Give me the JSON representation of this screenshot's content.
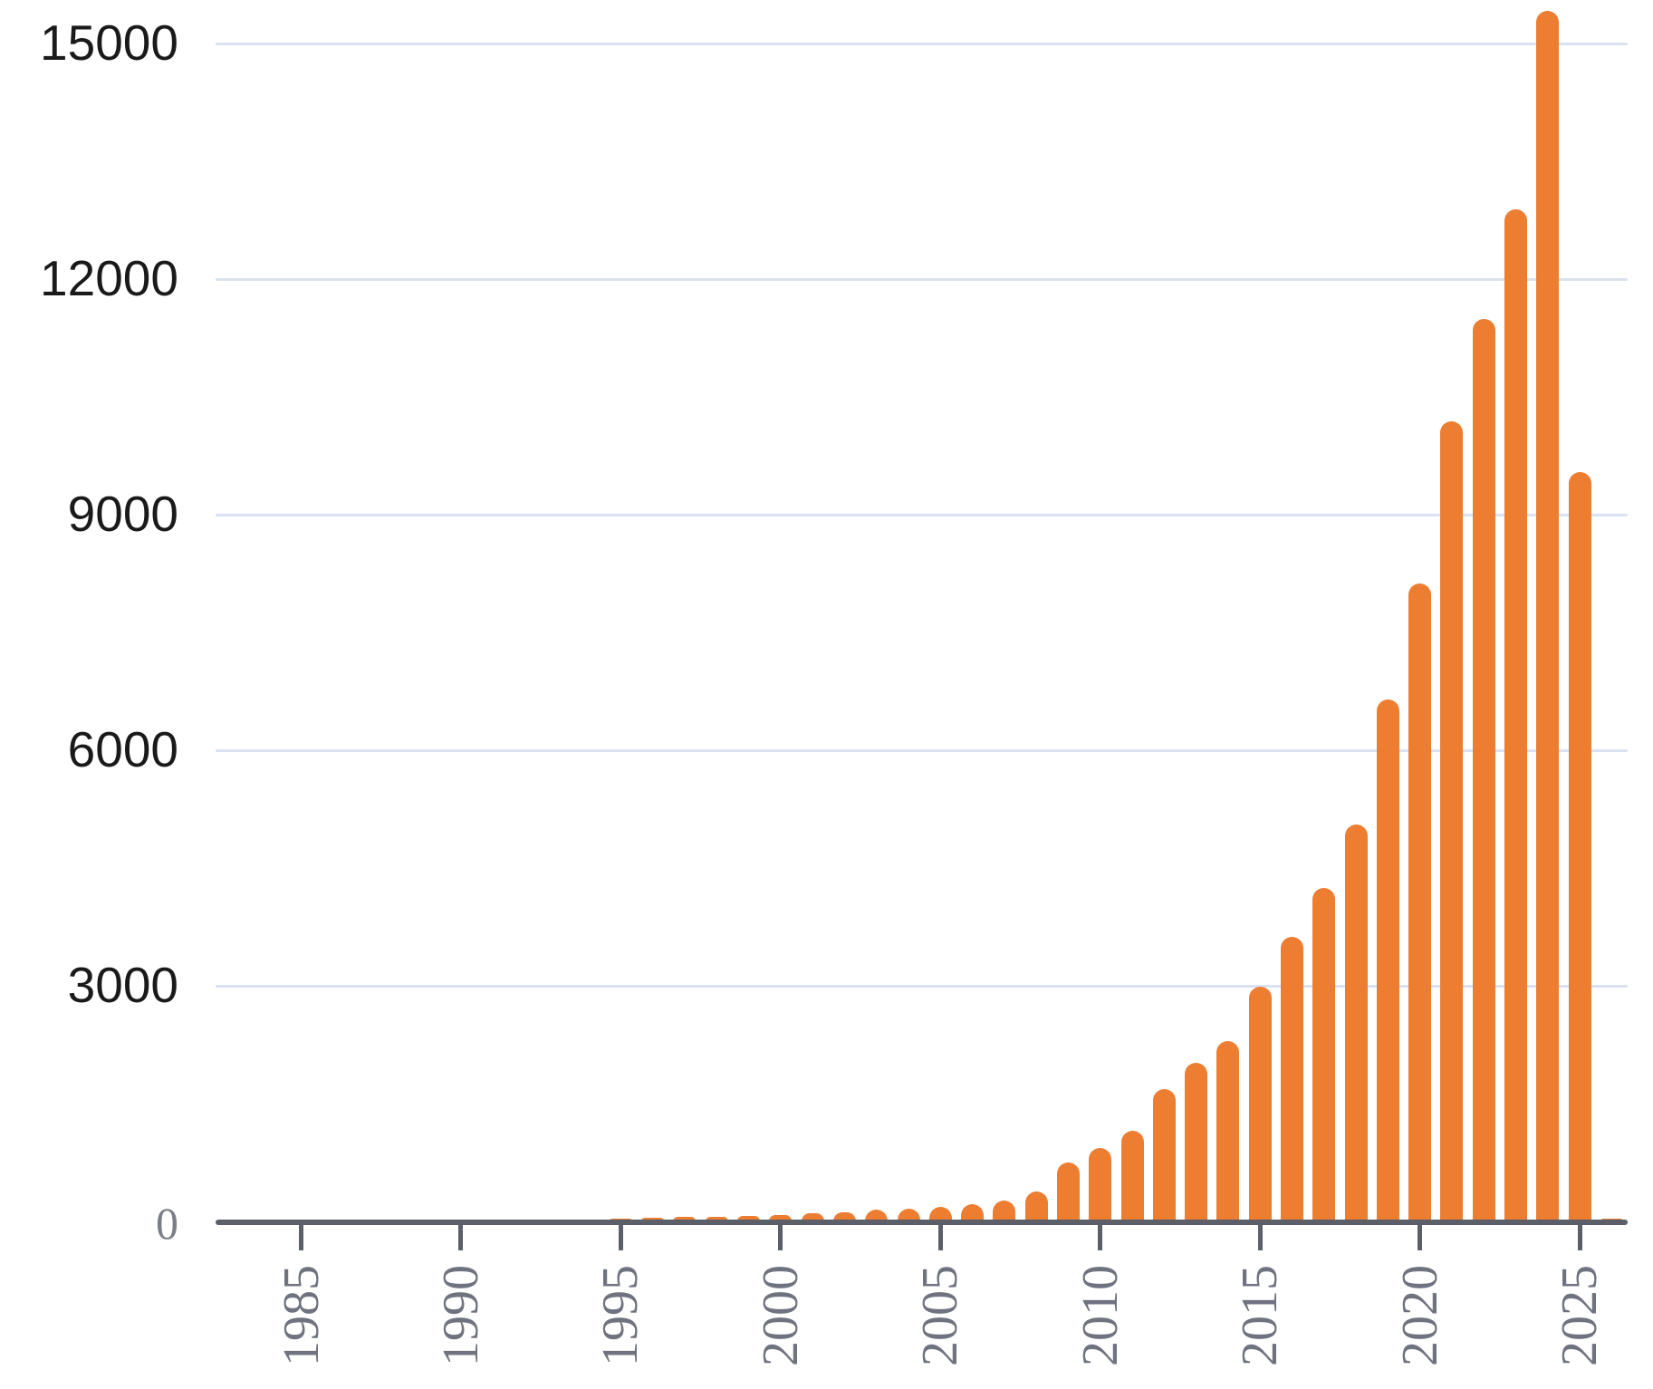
{
  "chart_data": {
    "type": "bar",
    "title": "",
    "xlabel": "",
    "ylabel": "",
    "grid": "horizontal",
    "legend": "none",
    "ylim": [
      0,
      15500
    ],
    "x_tick_step": 5,
    "years": [
      1983,
      1984,
      1985,
      1986,
      1987,
      1988,
      1989,
      1990,
      1991,
      1992,
      1993,
      1994,
      1995,
      1996,
      1997,
      1998,
      1999,
      2000,
      2001,
      2002,
      2003,
      2004,
      2005,
      2006,
      2007,
      2008,
      2009,
      2010,
      2011,
      2012,
      2013,
      2014,
      2015,
      2016,
      2017,
      2018,
      2019,
      2020,
      2021,
      2022,
      2023,
      2024,
      2025,
      2026
    ],
    "values": [
      2,
      2,
      3,
      4,
      5,
      6,
      7,
      9,
      12,
      16,
      21,
      26,
      33,
      42,
      52,
      62,
      72,
      78,
      105,
      120,
      150,
      158,
      190,
      225,
      270,
      385,
      750,
      930,
      1150,
      1690,
      2020,
      2300,
      2990,
      3620,
      4250,
      5050,
      6650,
      8120,
      10190,
      11490,
      12890,
      15420,
      9540,
      35
    ],
    "x_tick_labels": [
      "1985",
      "1990",
      "1995",
      "2000",
      "2005",
      "2010",
      "2015",
      "2020",
      "2025"
    ],
    "x_tick_years": [
      1985,
      1990,
      1995,
      2000,
      2005,
      2010,
      2015,
      2020,
      2025
    ],
    "y_tick_labels": [
      "15000",
      "12000",
      "9000",
      "6000",
      "3000",
      "0"
    ],
    "y_tick_values": [
      15000,
      12000,
      9000,
      6000,
      3000,
      0
    ],
    "colors": {
      "bar": "#ED7D31",
      "gridline": "#DAE1F0",
      "axis": "#5B5F6A",
      "x_tick_label": "#6F7380",
      "y_tick_label": "#1A1A1A",
      "zero_label": "#7A7E88"
    }
  }
}
